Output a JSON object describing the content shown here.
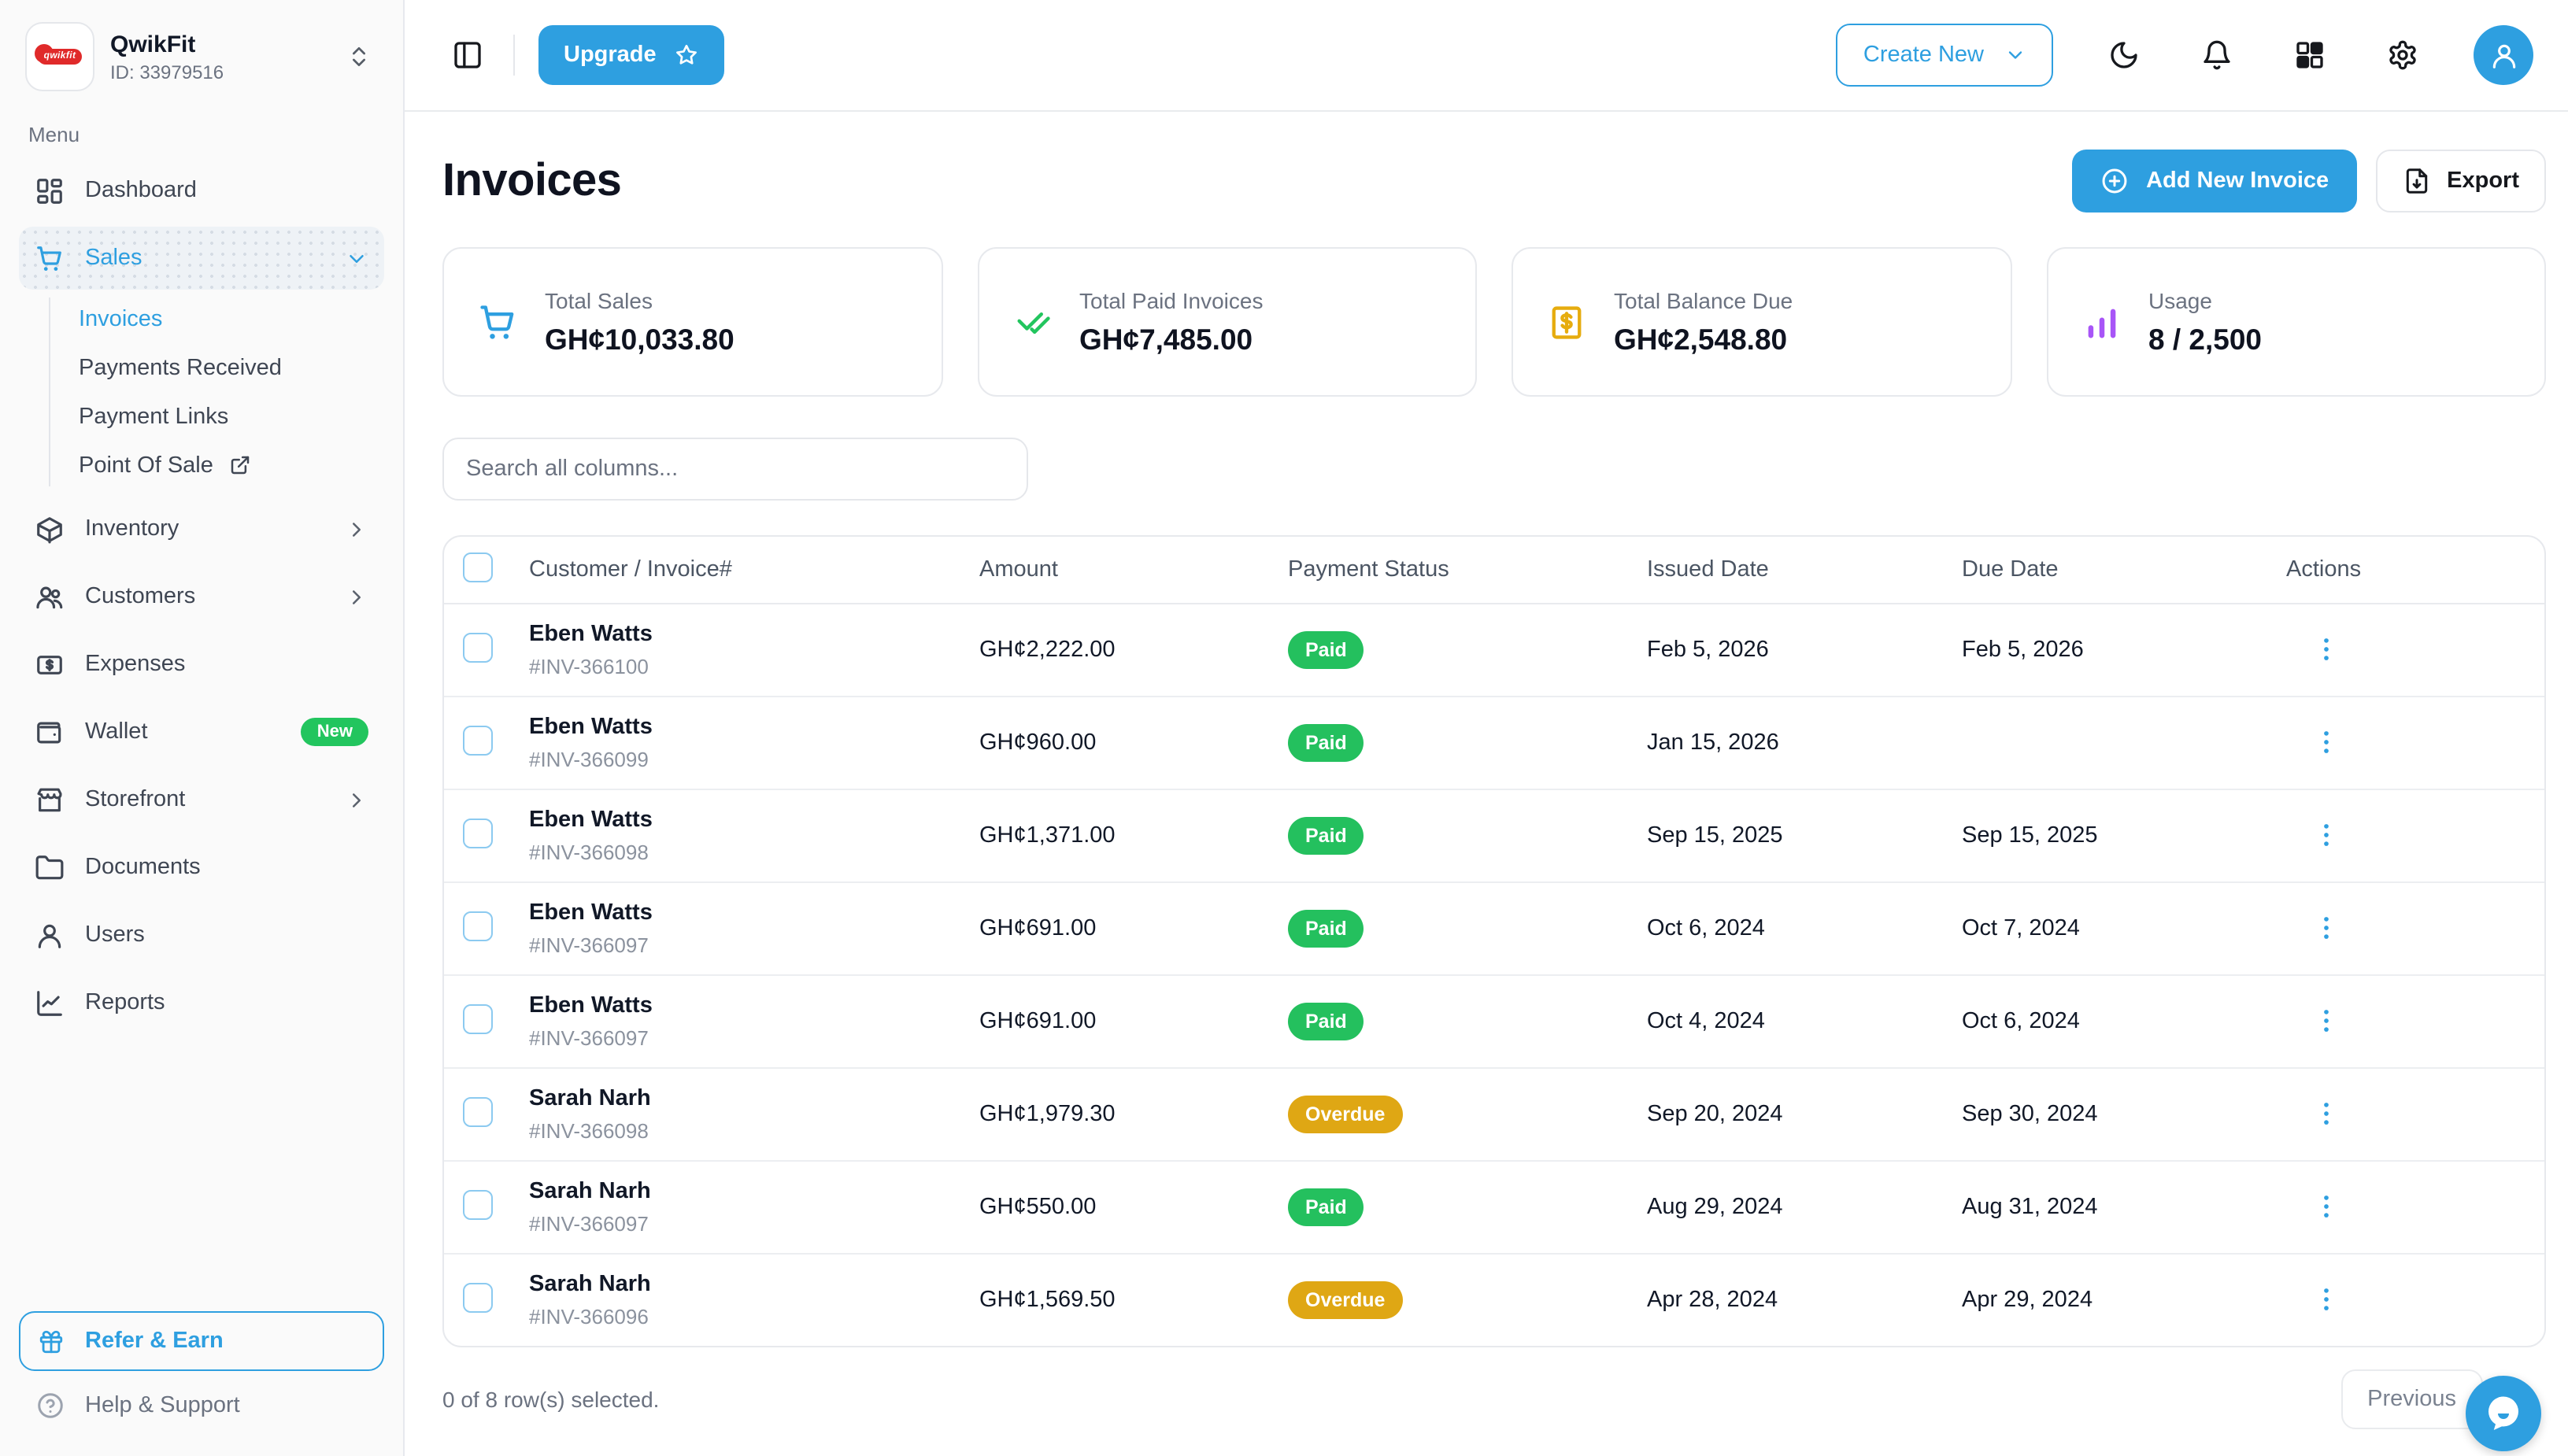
{
  "brand": {
    "name": "QwikFit",
    "id": "ID: 33979516",
    "logo_text": "qwikfit"
  },
  "colors": {
    "accent": "#2E9FE0",
    "paid_badge": "#24C05E",
    "overdue_badge": "#DFA714",
    "new_badge": "#22C55E",
    "sales_icon": "#2E9FE0",
    "paid_icon": "#22C55E",
    "balance_icon": "#E6AC0E",
    "usage_icon": "#A855F7"
  },
  "sidebar": {
    "section_label": "Menu",
    "items": [
      {
        "label": "Dashboard",
        "icon": "dashboard"
      },
      {
        "label": "Sales",
        "icon": "cart",
        "active": true,
        "chevron": "down",
        "children": [
          {
            "label": "Invoices",
            "active": true
          },
          {
            "label": "Payments Received"
          },
          {
            "label": "Payment Links"
          },
          {
            "label": "Point Of Sale",
            "external": true
          }
        ]
      },
      {
        "label": "Inventory",
        "icon": "package",
        "chevron": "right"
      },
      {
        "label": "Customers",
        "icon": "users",
        "chevron": "right"
      },
      {
        "label": "Expenses",
        "icon": "banknote"
      },
      {
        "label": "Wallet",
        "icon": "wallet",
        "badge": "New"
      },
      {
        "label": "Storefront",
        "icon": "store",
        "chevron": "right"
      },
      {
        "label": "Documents",
        "icon": "folder"
      },
      {
        "label": "Users",
        "icon": "user"
      },
      {
        "label": "Reports",
        "icon": "chart-line"
      }
    ],
    "refer_label": "Refer & Earn",
    "help_label": "Help & Support"
  },
  "topbar": {
    "upgrade_label": "Upgrade",
    "create_new_label": "Create New"
  },
  "page": {
    "title": "Invoices",
    "add_button": "Add New Invoice",
    "export_button": "Export"
  },
  "stats": [
    {
      "label": "Total Sales",
      "value": "GH¢10,033.80",
      "icon": "cart",
      "color": "#2E9FE0"
    },
    {
      "label": "Total Paid Invoices",
      "value": "GH¢7,485.00",
      "icon": "check-check",
      "color": "#22C55E"
    },
    {
      "label": "Total Balance Due",
      "value": "GH¢2,548.80",
      "icon": "receipt-dollar",
      "color": "#E6AC0E"
    },
    {
      "label": "Usage",
      "value": "8 / 2,500",
      "icon": "bar-chart",
      "color": "#A855F7"
    }
  ],
  "search": {
    "placeholder": "Search all columns..."
  },
  "table": {
    "headers": [
      "Customer / Invoice#",
      "Amount",
      "Payment Status",
      "Issued Date",
      "Due Date",
      "Actions"
    ],
    "rows": [
      {
        "customer": "Eben Watts",
        "invoice": "#INV-366100",
        "amount": "GH¢2,222.00",
        "status": "Paid",
        "issued": "Feb 5, 2026",
        "due": "Feb 5, 2026"
      },
      {
        "customer": "Eben Watts",
        "invoice": "#INV-366099",
        "amount": "GH¢960.00",
        "status": "Paid",
        "issued": "Jan 15, 2026",
        "due": ""
      },
      {
        "customer": "Eben Watts",
        "invoice": "#INV-366098",
        "amount": "GH¢1,371.00",
        "status": "Paid",
        "issued": "Sep 15, 2025",
        "due": "Sep 15, 2025"
      },
      {
        "customer": "Eben Watts",
        "invoice": "#INV-366097",
        "amount": "GH¢691.00",
        "status": "Paid",
        "issued": "Oct 6, 2024",
        "due": "Oct 7, 2024"
      },
      {
        "customer": "Eben Watts",
        "invoice": "#INV-366097",
        "amount": "GH¢691.00",
        "status": "Paid",
        "issued": "Oct 4, 2024",
        "due": "Oct 6, 2024"
      },
      {
        "customer": "Sarah Narh",
        "invoice": "#INV-366098",
        "amount": "GH¢1,979.30",
        "status": "Overdue",
        "issued": "Sep 20, 2024",
        "due": "Sep 30, 2024"
      },
      {
        "customer": "Sarah Narh",
        "invoice": "#INV-366097",
        "amount": "GH¢550.00",
        "status": "Paid",
        "issued": "Aug 29, 2024",
        "due": "Aug 31, 2024"
      },
      {
        "customer": "Sarah Narh",
        "invoice": "#INV-366096",
        "amount": "GH¢1,569.50",
        "status": "Overdue",
        "issued": "Apr 28, 2024",
        "due": "Apr 29, 2024"
      }
    ]
  },
  "footer": {
    "selected_text": "0 of 8 row(s) selected.",
    "previous_label": "Previous"
  }
}
